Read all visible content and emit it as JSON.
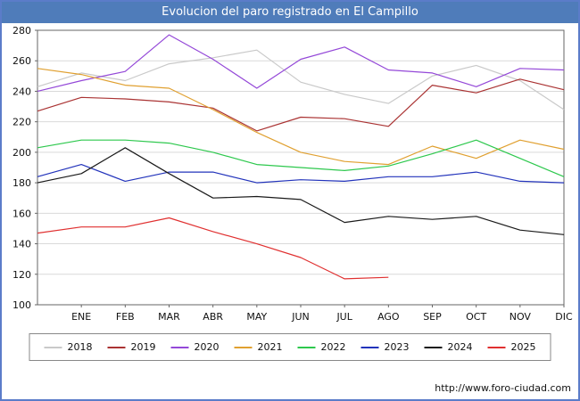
{
  "page": {
    "title": "Evolucion del paro registrado en El Campillo",
    "footer_url": "http://www.foro-ciudad.com"
  },
  "chart_data": {
    "type": "line",
    "title": "Evolucion del paro registrado en El Campillo",
    "categories": [
      "ENE",
      "FEB",
      "MAR",
      "ABR",
      "MAY",
      "JUN",
      "JUL",
      "AGO",
      "SEP",
      "OCT",
      "NOV",
      "DIC"
    ],
    "xlabel": "",
    "ylabel": "",
    "ylim": [
      100,
      280
    ],
    "ytick_step": 20,
    "grid": true,
    "legend_position": "bottom",
    "series": [
      {
        "name": "2018",
        "color": "#c9c9c9",
        "start": 243,
        "values": [
          252,
          247,
          258,
          262,
          267,
          246,
          238,
          232,
          250,
          257,
          247,
          228
        ]
      },
      {
        "name": "2019",
        "color": "#aa3333",
        "start": 227,
        "values": [
          236,
          235,
          233,
          229,
          214,
          223,
          222,
          217,
          244,
          239,
          248,
          241
        ]
      },
      {
        "name": "2020",
        "color": "#9448d8",
        "start": 240,
        "values": [
          247,
          253,
          277,
          261,
          242,
          261,
          269,
          254,
          252,
          243,
          255,
          254
        ]
      },
      {
        "name": "2021",
        "color": "#e0a030",
        "start": 255,
        "values": [
          251,
          244,
          242,
          228,
          213,
          200,
          194,
          192,
          204,
          196,
          208,
          202
        ]
      },
      {
        "name": "2022",
        "color": "#2dc84d",
        "start": 203,
        "values": [
          208,
          208,
          206,
          200,
          192,
          190,
          188,
          191,
          199,
          208,
          196,
          184
        ]
      },
      {
        "name": "2023",
        "color": "#2233bb",
        "start": 184,
        "values": [
          192,
          181,
          187,
          187,
          180,
          182,
          181,
          184,
          184,
          187,
          181,
          180
        ]
      },
      {
        "name": "2024",
        "color": "#1a1a1a",
        "start": 180,
        "values": [
          186,
          203,
          186,
          170,
          171,
          169,
          154,
          158,
          156,
          158,
          149,
          146
        ]
      },
      {
        "name": "2025",
        "color": "#e03030",
        "start": 147,
        "values": [
          151,
          151,
          157,
          148,
          140,
          131,
          117,
          118
        ]
      }
    ]
  }
}
